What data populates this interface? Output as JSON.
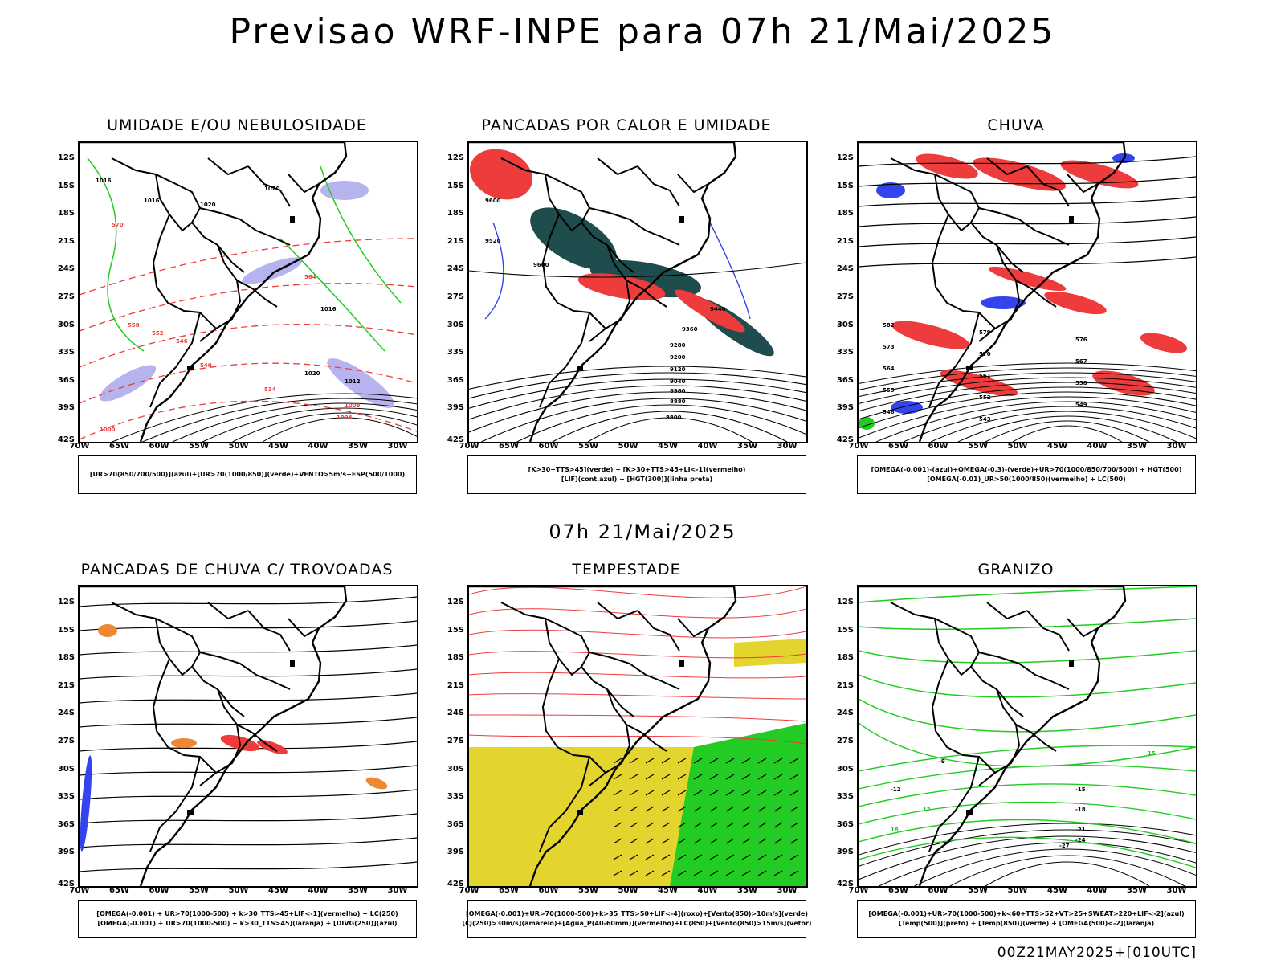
{
  "title": "Previsao WRF-INPE  para 07h 21/Mai/2025",
  "mid_date": "07h 21/Mai/2025",
  "footer": "00Z21MAY2025+[010UTC]",
  "lat_ticks": [
    "12S",
    "15S",
    "18S",
    "21S",
    "24S",
    "27S",
    "30S",
    "33S",
    "36S",
    "39S",
    "42S"
  ],
  "lon_ticks": [
    "70W",
    "65W",
    "60W",
    "55W",
    "50W",
    "45W",
    "40W",
    "35W",
    "30W"
  ],
  "panels": [
    {
      "title": "UMIDADE E/OU NEBULOSIDADE",
      "legend": [
        "[UR>70(850/700/500)](azul)+[UR>70(1000/850)](verde)+VENTO>5m/s+ESP(500/1000)"
      ],
      "contour_labels": [
        "1016",
        "1016",
        "1020",
        "1020",
        "1016",
        "1020",
        "1012",
        "1008",
        "1004",
        "1000",
        "570",
        "564",
        "558",
        "552",
        "546",
        "540",
        "534"
      ]
    },
    {
      "title": "PANCADAS POR CALOR E UMIDADE",
      "legend": [
        "[K>30+TTS>45](verde) + [K>30+TTS>45+LI<-1](vermelho)",
        "[LIF](cont.azul) + [HGT(300)](linha preta)"
      ],
      "contour_labels": [
        "9600",
        "9520",
        "9600",
        "9440",
        "9360",
        "9280",
        "9200",
        "9120",
        "9040",
        "8960",
        "8880",
        "8800"
      ]
    },
    {
      "title": "CHUVA",
      "legend": [
        "[OMEGA(-0.001)-(azul)+OMEGA(-0.3)-(verde)+UR>70(1000/850/700/500)] + HGT(500)",
        "[OMEGA(-0.01)_UR>50(1000/850)(vermelho) + LC(500)"
      ],
      "contour_labels": [
        "582",
        "579",
        "576",
        "573",
        "570",
        "567",
        "564",
        "561",
        "558",
        "555",
        "552",
        "549",
        "546",
        "543"
      ]
    },
    {
      "title": "PANCADAS DE CHUVA C/ TROVOADAS",
      "legend": [
        "[OMEGA(-0.001) + UR>70(1000-500) + k>30_TTS>45+LIF<-1](vermelho) + LC(250)",
        "[OMEGA(-0.001) + UR>70(1000-500) + k>30_TTS>45](laranja) + [DIVG(250)](azul)"
      ],
      "contour_labels": []
    },
    {
      "title": "TEMPESTADE",
      "legend": [
        "[OMEGA(-0.001)+UR>70(1000-500)+k>35_TTS>50+LIF<-4](roxo)+[Vento(850)>10m/s](verde)",
        "[CJ(250)>30m/s](amarelo)+[Agua_P(40-60mm)](vermelho)+LC(850)+[Vento(850)>15m/s](vetor)"
      ],
      "contour_labels": []
    },
    {
      "title": "GRANIZO",
      "legend": [
        "[OMEGA(-0.001)+UR>70(1000-500)+k<60+TTS>52+VT>25+SWEAT>220+LIF<-2](azul)",
        "[Temp(500)](preto) + [Temp(850)](verde) + [OMEGA(500)<-2](laranja)"
      ],
      "contour_labels": [
        "-9",
        "-12",
        "-15",
        "-18",
        "-21",
        "-24",
        "-27",
        "15",
        "18",
        "12"
      ]
    }
  ],
  "colors": {
    "blue": "#3344ee",
    "lavender": "#b7b3ee",
    "green": "#22cc22",
    "red": "#ee3b3b",
    "dark_teal": "#1f4d4d",
    "yellow": "#e3d52e",
    "orange": "#ee8833",
    "black": "#000000"
  }
}
